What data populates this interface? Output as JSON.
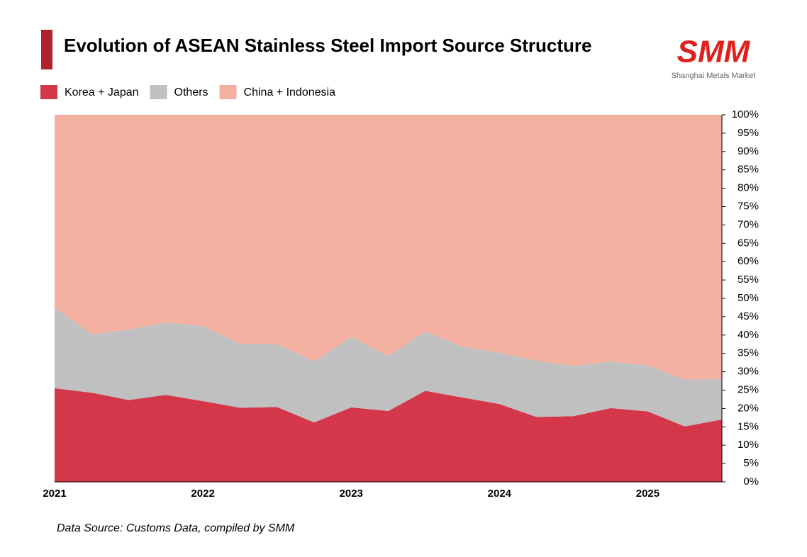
{
  "chart_data": {
    "type": "stacked_area_100",
    "title": "Evolution of ASEAN Stainless Steel Import Source Structure",
    "logo": "SMM",
    "logo_subtitle": "Shanghai Metals Market",
    "source": "Data Source: Customs Data, compiled by SMM",
    "categories": [
      "2021",
      null,
      null,
      null,
      "2022",
      null,
      null,
      null,
      "2023",
      null,
      null,
      null,
      "2024",
      null,
      null,
      null,
      "2025",
      null,
      null
    ],
    "series": [
      {
        "name": "Korea + Japan",
        "color": "#d4374a",
        "values": [
          25.5,
          24.3,
          22.3,
          23.7,
          22.0,
          20.2,
          20.4,
          16.2,
          20.3,
          19.3,
          24.8,
          23.0,
          21.2,
          17.7,
          17.9,
          20.1,
          19.2,
          15.1,
          17.0
        ]
      },
      {
        "name": "Others",
        "color": "#c0c0c0",
        "values": [
          22.0,
          15.9,
          19.2,
          19.7,
          20.5,
          17.4,
          17.1,
          16.6,
          19.2,
          15.0,
          16.2,
          13.8,
          14.0,
          15.3,
          13.7,
          12.7,
          12.5,
          12.8,
          11.0
        ]
      },
      {
        "name": "China + Indonesia",
        "color": "#f3b0a1",
        "values": [
          52.5,
          59.8,
          58.5,
          56.6,
          57.5,
          62.4,
          62.5,
          67.2,
          60.5,
          65.7,
          59.0,
          63.2,
          64.8,
          67.0,
          68.4,
          67.2,
          68.3,
          72.1,
          72.0
        ]
      }
    ],
    "ylim": [
      0,
      100
    ],
    "yticks": [
      {
        "value": 0,
        "label": "0%"
      },
      {
        "value": 5,
        "label": "5%"
      },
      {
        "value": 10,
        "label": "10%"
      },
      {
        "value": 15,
        "label": "15%"
      },
      {
        "value": 20,
        "label": "20%"
      },
      {
        "value": 25,
        "label": "25%"
      },
      {
        "value": 30,
        "label": "30%"
      },
      {
        "value": 35,
        "label": "35%"
      },
      {
        "value": 40,
        "label": "40%"
      },
      {
        "value": 45,
        "label": "45%"
      },
      {
        "value": 50,
        "label": "50%"
      },
      {
        "value": 55,
        "label": "55%"
      },
      {
        "value": 60,
        "label": "60%"
      },
      {
        "value": 65,
        "label": "65%"
      },
      {
        "value": 70,
        "label": "70%"
      },
      {
        "value": 75,
        "label": "75%"
      },
      {
        "value": 80,
        "label": "80%"
      },
      {
        "value": 85,
        "label": "85%"
      },
      {
        "value": 90,
        "label": "90%"
      },
      {
        "value": 95,
        "label": "95%"
      },
      {
        "value": 100,
        "label": "100%"
      }
    ],
    "y_axis_side": "right"
  }
}
